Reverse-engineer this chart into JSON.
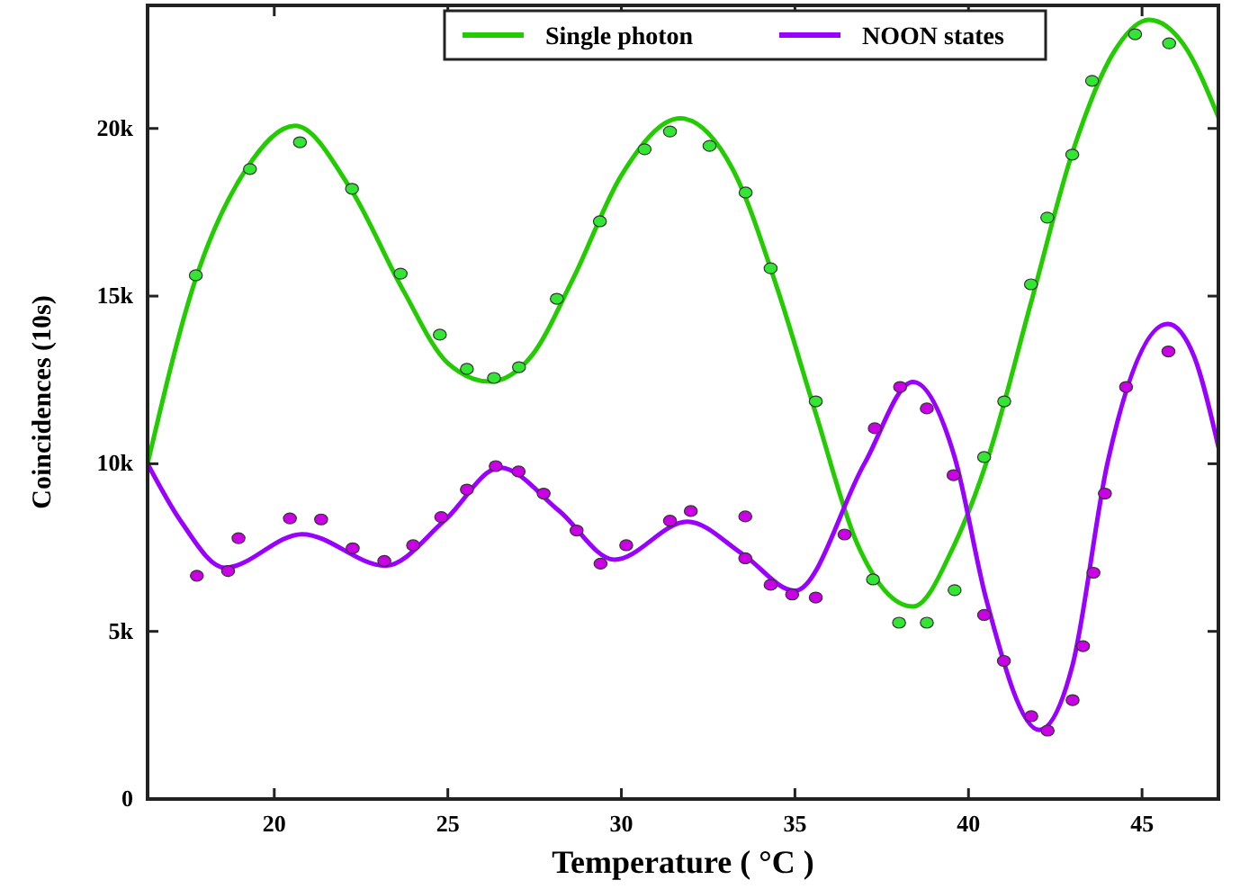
{
  "chart_data": {
    "type": "line",
    "xlabel": "Temperature ( °C )",
    "ylabel": "Coincidences (10s)",
    "xlim": [
      16.35,
      47.2
    ],
    "xticks": [
      20,
      25,
      30,
      35,
      40,
      45
    ],
    "ylim": [
      0,
      23670
    ],
    "yticks": [
      0,
      {
        "value": 5000,
        "label": "5k"
      },
      {
        "value": 10000,
        "label": "10k"
      },
      {
        "value": 15000,
        "label": "15k"
      },
      {
        "value": 20000,
        "label": "20k"
      }
    ],
    "grid": false,
    "legend": "top",
    "line_style": "solid",
    "series": [
      {
        "name": "Single photon",
        "color": "#22cc00",
        "x": [
          16.35,
          17.7,
          19.2,
          20.6,
          22.2,
          23.7,
          25.0,
          26.2,
          27.4,
          28.6,
          30.0,
          31.7,
          33.2,
          34.5,
          35.6,
          36.8,
          38.4,
          39.6,
          40.6,
          41.8,
          43.0,
          44.2,
          45.2,
          46.2,
          47.2
        ],
        "values": [
          10000,
          15400,
          18800,
          20080,
          18200,
          15200,
          13000,
          12450,
          13200,
          15500,
          18600,
          20300,
          18800,
          15200,
          11500,
          7600,
          5740,
          7600,
          10300,
          14800,
          19300,
          22300,
          23240,
          22500,
          20340
        ]
      },
      {
        "name": "NOON states",
        "color": "#9900ff",
        "x": [
          16.35,
          17.3,
          18.58,
          20.8,
          23.2,
          24.9,
          26.5,
          28.2,
          29.8,
          31.9,
          33.5,
          35.0,
          37.0,
          38.4,
          39.6,
          40.5,
          42.04,
          43.0,
          44.0,
          45.74,
          46.5,
          47.2
        ],
        "values": [
          10000,
          8300,
          6900,
          7900,
          6960,
          8300,
          9880,
          8600,
          7140,
          8270,
          7300,
          6210,
          10000,
          12440,
          10200,
          6000,
          2060,
          4000,
          10000,
          14170,
          13200,
          10500
        ]
      },
      {
        "type": "scatter",
        "marker": "circle",
        "color": "#33e633",
        "x": [
          17.74,
          19.3,
          20.74,
          22.24,
          23.64,
          24.77,
          25.55,
          26.33,
          27.05,
          28.14,
          29.38,
          30.67,
          31.4,
          32.54,
          33.58,
          34.3,
          35.6,
          37.25,
          38.0,
          38.8,
          39.6,
          40.45,
          41.03,
          41.8,
          42.27,
          42.99,
          43.56,
          44.8,
          45.78
        ],
        "values": [
          15620,
          18790,
          19590,
          18200,
          15670,
          13850,
          12830,
          12560,
          12880,
          14920,
          17230,
          19380,
          19910,
          19480,
          18090,
          15830,
          11860,
          6550,
          5260,
          5260,
          6230,
          10200,
          11860,
          15350,
          17340,
          19220,
          21420,
          22810,
          22540
        ]
      },
      {
        "type": "scatter",
        "marker": "circle",
        "color": "#cc00e6",
        "x": [
          17.77,
          18.67,
          18.97,
          20.45,
          21.35,
          22.26,
          23.17,
          24.0,
          24.81,
          25.55,
          26.38,
          27.04,
          27.76,
          28.71,
          29.4,
          30.14,
          31.4,
          32.0,
          33.57,
          33.57,
          34.3,
          34.92,
          35.6,
          36.43,
          37.3,
          38.03,
          38.8,
          39.57,
          40.45,
          41.02,
          41.81,
          42.28,
          43.0,
          43.3,
          43.6,
          43.93,
          44.54,
          45.76
        ],
        "values": [
          6660,
          6800,
          7780,
          8370,
          8340,
          7480,
          7100,
          7570,
          8410,
          9230,
          9930,
          9770,
          9110,
          8010,
          7020,
          7570,
          8300,
          8590,
          8430,
          7180,
          6390,
          6100,
          6010,
          7890,
          11060,
          12290,
          11650,
          9660,
          5490,
          4120,
          2470,
          2040,
          2950,
          4560,
          6750,
          9110,
          12290,
          13350
        ]
      }
    ]
  }
}
